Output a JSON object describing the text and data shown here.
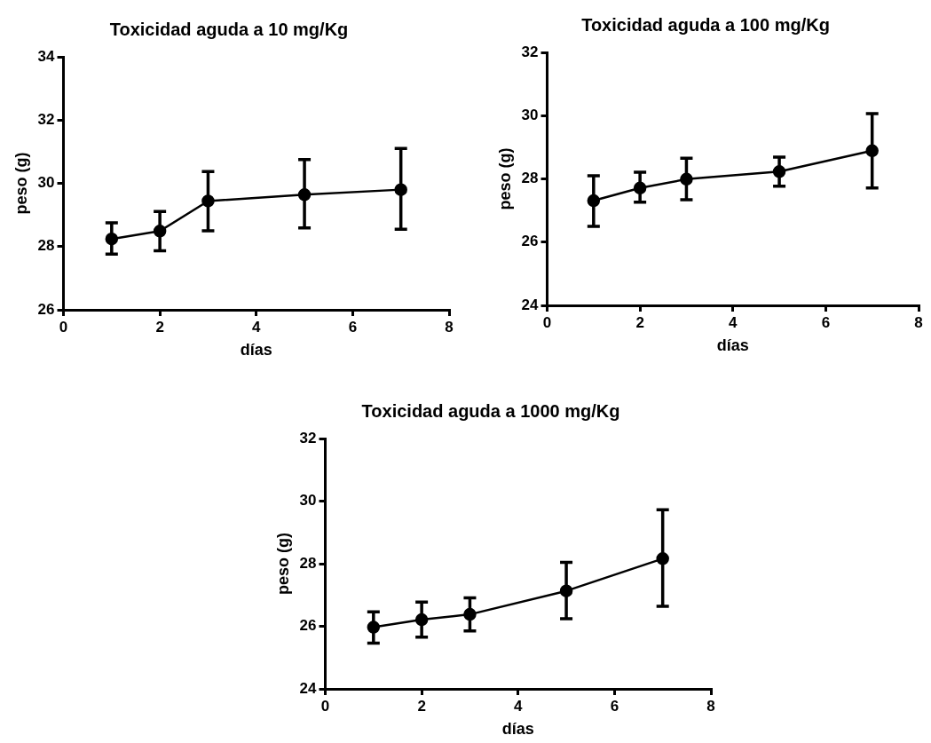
{
  "chart_data": [
    {
      "type": "line",
      "title": "Toxicidad aguda a 10 mg/Kg",
      "xlabel": "días",
      "ylabel": "peso (g)",
      "x": [
        1,
        2,
        3,
        5,
        7
      ],
      "marker": "circle",
      "grid": false,
      "legend": false,
      "series": [
        {
          "color": "#000000",
          "values": [
            28.24,
            28.49,
            29.44,
            29.64,
            29.8
          ],
          "errors": [
            [
              27.76,
              28.75
            ],
            [
              27.87,
              29.11
            ],
            [
              28.5,
              30.37
            ],
            [
              28.59,
              30.75
            ],
            [
              28.55,
              31.1
            ]
          ]
        }
      ],
      "xlim": [
        0,
        8
      ],
      "xticks": [
        0,
        2,
        4,
        6,
        8
      ],
      "ylim": [
        26,
        34
      ],
      "yticks": [
        26,
        28,
        30,
        32,
        34
      ]
    },
    {
      "type": "line",
      "title": "Toxicidad aguda a 100 mg/Kg",
      "xlabel": "días",
      "ylabel": "peso (g)",
      "x": [
        1,
        2,
        3,
        5,
        7
      ],
      "marker": "circle",
      "grid": false,
      "legend": false,
      "series": [
        {
          "color": "#000000",
          "values": [
            27.31,
            27.71,
            27.99,
            28.23,
            28.89
          ],
          "errors": [
            [
              26.5,
              28.1
            ],
            [
              27.26,
              28.21
            ],
            [
              27.34,
              28.65
            ],
            [
              27.77,
              28.69
            ],
            [
              27.71,
              30.06
            ]
          ]
        }
      ],
      "xlim": [
        0,
        8
      ],
      "xticks": [
        0,
        2,
        4,
        6,
        8
      ],
      "ylim": [
        24,
        32
      ],
      "yticks": [
        24,
        26,
        28,
        30,
        32
      ]
    },
    {
      "type": "line",
      "title": "Toxicidad aguda a 1000 mg/Kg",
      "xlabel": "días",
      "ylabel": "peso (g)",
      "x": [
        1,
        2,
        3,
        5,
        7
      ],
      "marker": "circle",
      "grid": false,
      "legend": false,
      "series": [
        {
          "color": "#000000",
          "values": [
            25.97,
            26.21,
            26.38,
            27.13,
            28.16
          ],
          "errors": [
            [
              25.46,
              26.46
            ],
            [
              25.65,
              26.77
            ],
            [
              25.85,
              26.91
            ],
            [
              26.24,
              28.04
            ],
            [
              26.64,
              29.72
            ]
          ]
        }
      ],
      "xlim": [
        0,
        8
      ],
      "xticks": [
        0,
        2,
        4,
        6,
        8
      ],
      "ylim": [
        24,
        32
      ],
      "yticks": [
        24,
        26,
        28,
        30,
        32
      ]
    }
  ]
}
